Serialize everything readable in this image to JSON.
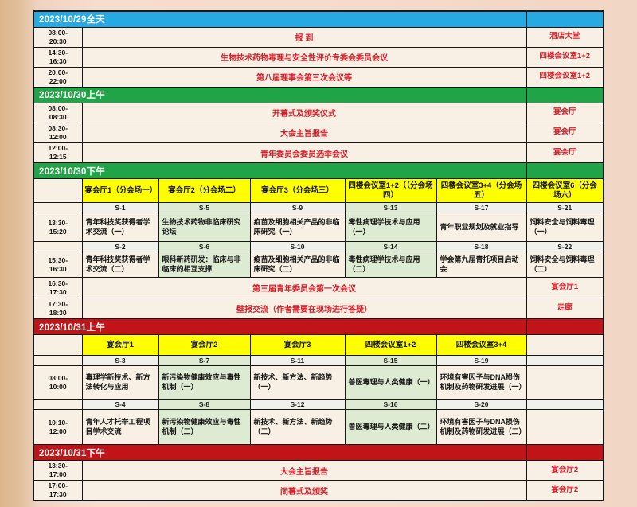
{
  "colors": {
    "section_blue": "#27aae1",
    "section_green": "#21a447",
    "section_red": "#c11419",
    "venue_yellow": "#ffff00",
    "cell_cream": "#f8f0e4",
    "cell_tint_green": "#ddebd2",
    "event_text_red": "#d1202b",
    "border_black": "#161616"
  },
  "schedule": {
    "sections": [
      {
        "title": "2023/10/29全天",
        "theme": "blue",
        "rows": [
          {
            "type": "plenary",
            "time_start": "08:00-",
            "time_end": "20:30",
            "event": "报 到",
            "location": "酒店大堂"
          },
          {
            "type": "plenary",
            "time_start": "14:30-",
            "time_end": "16:30",
            "event": "生物技术药物毒理与安全性评价专委会委员会议",
            "location": "四楼会议室1+2"
          },
          {
            "type": "plenary",
            "time_start": "20:00-",
            "time_end": "22:00",
            "event": "第八届理事会第三次会议等",
            "location": "四楼会议室1+2"
          }
        ]
      },
      {
        "title": "2023/10/30上午",
        "theme": "green",
        "rows": [
          {
            "type": "plenary",
            "time_start": "08:00-",
            "time_end": "08:30",
            "event": "开幕式及颁奖仪式",
            "location": "宴会厅"
          },
          {
            "type": "plenary",
            "time_start": "08:30-",
            "time_end": "12:00",
            "event": "大会主旨报告",
            "location": "宴会厅"
          },
          {
            "type": "plenary",
            "time_start": "12:00-",
            "time_end": "12:15",
            "event": "青年委员会委员选举会议",
            "location": "宴会厅"
          }
        ]
      },
      {
        "title": "2023/10/30下午",
        "theme": "green",
        "rows": [
          {
            "type": "venues",
            "cells": [
              "宴会厅1（分会场一）",
              "宴会厅2（分会场二）",
              "宴会厅3（分会场三）",
              "四楼会议室1+2（（分会场四）",
              "四楼会议室3+4（分会场五）",
              "四楼会议室6（分会场六）"
            ]
          },
          {
            "type": "codes",
            "cells": [
              "S-1",
              "S-5",
              "S-9",
              "S-13",
              "S-17",
              "S-21"
            ]
          },
          {
            "type": "sessions",
            "time_start": "13:30-",
            "time_end": "15:20",
            "cells": [
              "青年科技奖获得者学术交流（一）",
              "生物技术药物非临床研究论坛",
              "疫苗及细胞相关产品的非临床研究（一）",
              "毒性病理学技术与应用（一）",
              "青年职业规划及就业指导",
              "饲料安全与饲料毒理（一）"
            ]
          },
          {
            "type": "codes",
            "cells": [
              "S-2",
              "S-6",
              "S-10",
              "S-14",
              "S-18",
              "S-22"
            ]
          },
          {
            "type": "sessions",
            "time_start": "15:30-",
            "time_end": "16:30",
            "cells": [
              "青年科技奖获得者学术交流（二）",
              "眼科新药研发：临床与非临床的相互支撑",
              "疫苗及细胞相关产品的非临床研究（二）",
              "毒性病理学技术与应用（二）",
              "学会第九届青托项目启动会",
              "饲料安全与饲料毒理（二）"
            ]
          },
          {
            "type": "plenary",
            "time_start": "16:30-",
            "time_end": "17:30",
            "event": "第三届青年委员会第一次会议",
            "location": "宴会厅1"
          },
          {
            "type": "plenary",
            "time_start": "17:30-",
            "time_end": "18:30",
            "event": "壁报交流（作者需要在现场进行答疑）",
            "location": "走廊"
          }
        ]
      },
      {
        "title": "2023/10/31上午",
        "theme": "red",
        "rows": [
          {
            "type": "venues",
            "cells": [
              "宴会厅1",
              "宴会厅2",
              "宴会厅3",
              "四楼会议室1+2",
              "四楼会议室3+4",
              ""
            ]
          },
          {
            "type": "codes",
            "cells": [
              "S-3",
              "S-7",
              "S-11",
              "S-15",
              "S-19",
              ""
            ]
          },
          {
            "type": "sessions",
            "time_start": "08:00-",
            "time_end": "10:00",
            "cells": [
              "毒理学新技术、新方法转化与应用",
              "新污染物健康效应与毒性机制（一）",
              "新技术、新方法、新趋势（一）",
              "兽医毒理与人类健康（一）",
              "环境有害因子与DNA损伤机制及药物研发进展（一）",
              ""
            ]
          },
          {
            "type": "codes",
            "cells": [
              "S-4",
              "S-8",
              "S-12",
              "S-16",
              "S-20",
              ""
            ]
          },
          {
            "type": "sessions",
            "time_start": "10:10-",
            "time_end": "12:00",
            "cells": [
              "青年人才托举工程项目学术交流",
              "新污染物健康效应与毒性机制（二）",
              "新技术、新方法、新趋势（二）",
              "兽医毒理与人类健康（二）",
              "环境有害因子与DNA损伤机制及药物研发进展（二）",
              ""
            ]
          }
        ]
      },
      {
        "title": "2023/10/31下午",
        "theme": "red",
        "rows": [
          {
            "type": "plenary",
            "time_start": "13:30-",
            "time_end": "17:00",
            "event": "大会主旨报告",
            "location": "宴会厅2"
          },
          {
            "type": "plenary",
            "time_start": "17:00-",
            "time_end": "17:30",
            "event": "闭幕式及颁奖",
            "location": "宴会厅2"
          }
        ]
      }
    ]
  }
}
